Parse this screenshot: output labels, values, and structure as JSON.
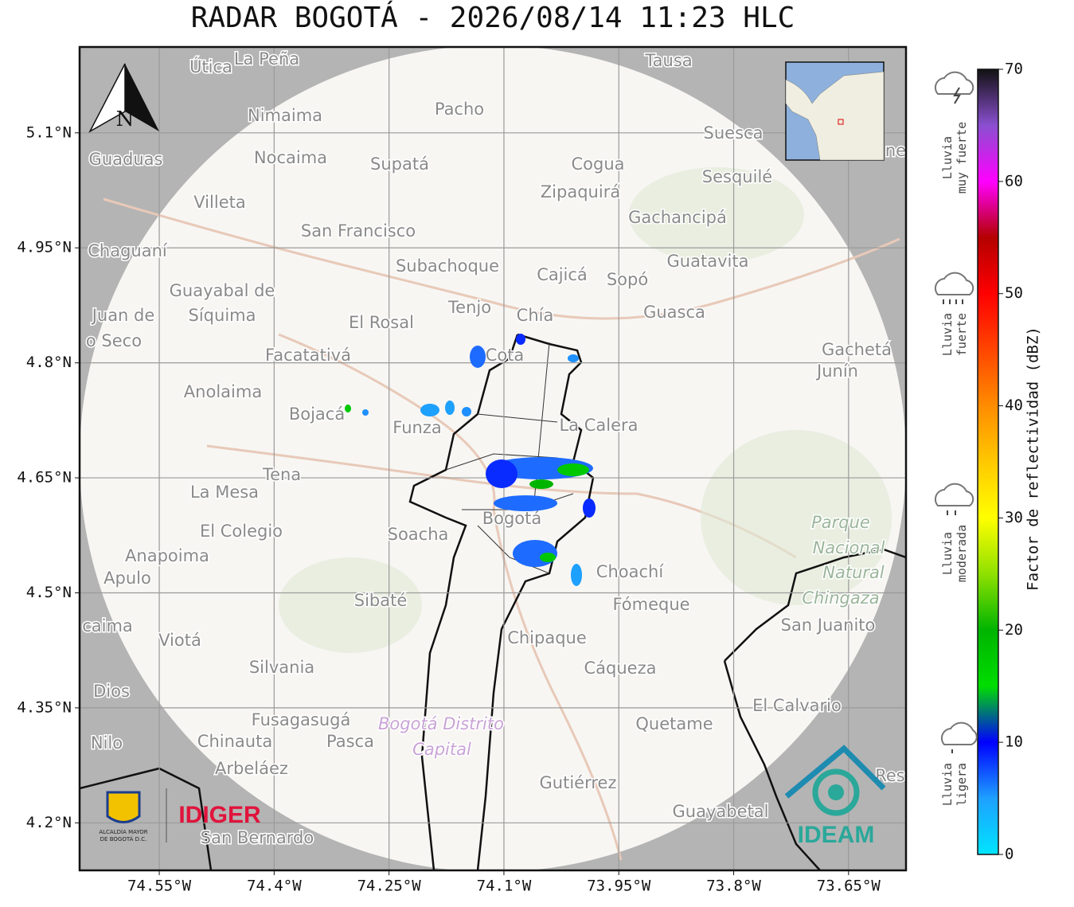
{
  "title": "RADAR BOGOTÁ - 2026/08/14 11:23 HLC",
  "map": {
    "xlim": [
      -74.654,
      -73.575
    ],
    "ylim": [
      4.138,
      5.212
    ],
    "grid": true,
    "xticks": [
      {
        "value": -74.55,
        "label": "74.55°W"
      },
      {
        "value": -74.4,
        "label": "74.4°W"
      },
      {
        "value": -74.25,
        "label": "74.25°W"
      },
      {
        "value": -74.1,
        "label": "74.1°W"
      },
      {
        "value": -73.95,
        "label": "73.95°W"
      },
      {
        "value": -73.8,
        "label": "73.8°W"
      },
      {
        "value": -73.65,
        "label": "73.65°W"
      }
    ],
    "yticks": [
      {
        "value": 5.1,
        "label": "5.1°N"
      },
      {
        "value": 4.95,
        "label": "4.95°N"
      },
      {
        "value": 4.8,
        "label": "4.8°N"
      },
      {
        "value": 4.65,
        "label": "4.65°N"
      },
      {
        "value": 4.5,
        "label": "4.5°N"
      },
      {
        "value": 4.35,
        "label": "4.35°N"
      },
      {
        "value": 4.2,
        "label": "4.2°N"
      }
    ],
    "places": [
      "Útica",
      "La Peña",
      "Tausa",
      "Pacho",
      "Nimaima",
      "Suesca",
      "Guaduas",
      "Nocaima",
      "Supatá",
      "Cogua",
      "Sesquilé",
      "Zipaquirá",
      "Villeta",
      "Gachancipá",
      "San Francisco",
      "Chaguaní",
      "Guatavita",
      "Subachoque",
      "Cajicá",
      "Sopó",
      "Guayabal de",
      "Síquima",
      "Juan de",
      "o Seco",
      "Tenjo",
      "Chía",
      "Guasca",
      "El Rosal",
      "Gachetá",
      "Junín",
      "Facatativá",
      "Cota",
      "Anolaima",
      "Bojacá",
      "Funza",
      "La Calera",
      "Tena",
      "La Mesa",
      "Parque",
      "Nacional",
      "Natural",
      "Chingaza",
      "El Colegio",
      "Soacha",
      "Bogotá",
      "Anapoima",
      "Apulo",
      "Choachí",
      "Sibaté",
      "Fómeque",
      "San Juanito",
      "caima",
      "Viotá",
      "Chipaque",
      "Silvania",
      "Cáqueza",
      "Dios",
      "El Calvario",
      "Fusagasugá",
      "Bogotá Distrito",
      "Capital",
      "Quetame",
      "Nilo",
      "Chinauta",
      "Pasca",
      "Arbeláez",
      "Res",
      "Gutiérrez",
      "Guayabetal",
      "San Bernardo",
      "ne"
    ]
  },
  "north_arrow": "N",
  "colorbar": {
    "label": "Factor de reflectividad (dBZ)",
    "lim": [
      0,
      70
    ],
    "ticks": [
      0,
      10,
      20,
      30,
      40,
      50,
      60,
      70
    ],
    "colors": [
      "#00e5ff",
      "#1ea0ff",
      "#0000ff",
      "#00dd00",
      "#00b400",
      "#8fe000",
      "#ffff00",
      "#ffc800",
      "#ff8c00",
      "#ff4500",
      "#ff0000",
      "#b40000",
      "#ff00ff",
      "#8a4fd0",
      "#111111"
    ]
  },
  "rain_levels": [
    {
      "lines": [
        "Lluvia",
        "muy fuerte"
      ]
    },
    {
      "lines": [
        "Lluvia",
        "fuerte"
      ]
    },
    {
      "lines": [
        "Lluvia",
        "moderada"
      ]
    },
    {
      "lines": [
        "Lluvia",
        "ligera"
      ]
    }
  ],
  "logos": {
    "alcaldia": [
      "ALCALDÍA MAYOR",
      "DE BOGOTÁ D.C."
    ],
    "idiger": "IDIGER",
    "ideam": "IDEAM"
  }
}
